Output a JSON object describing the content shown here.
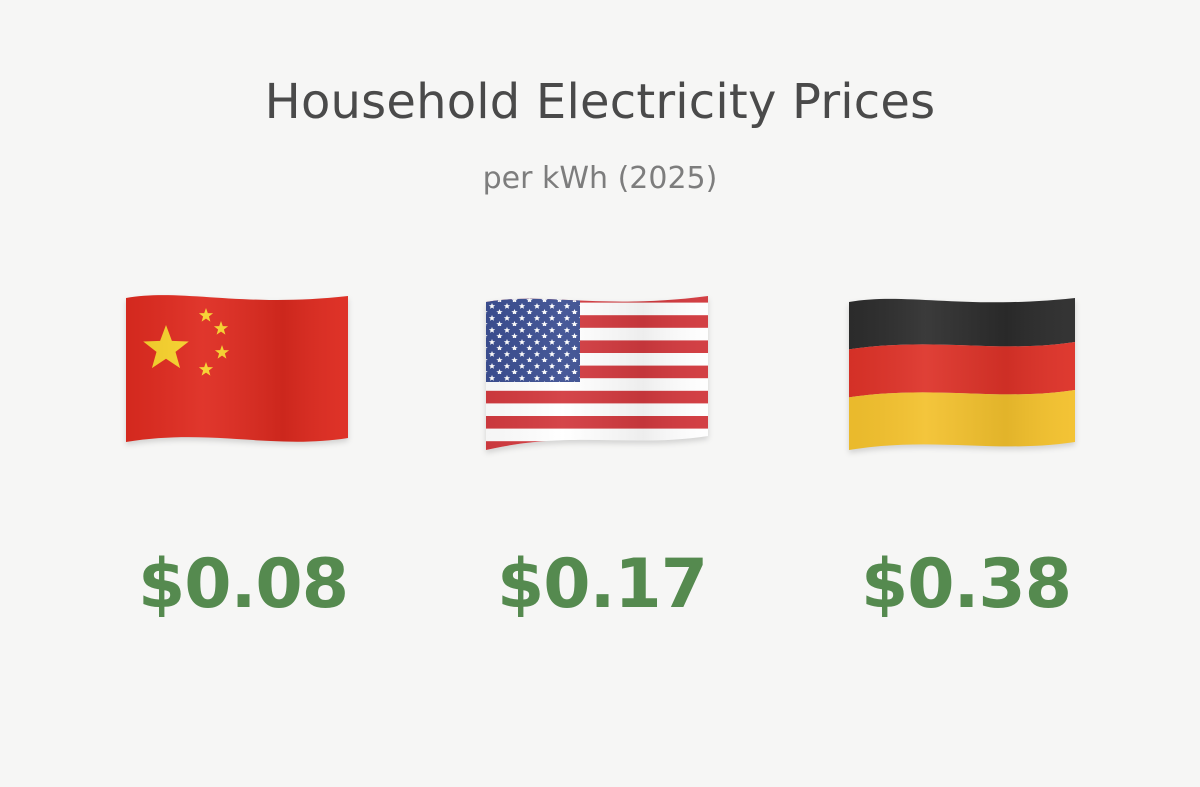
{
  "header": {
    "title": "Household Electricity Prices",
    "subtitle": "per kWh (2025)"
  },
  "colors": {
    "price_green": "#558a4f",
    "china_red": "#de2a1f",
    "china_yellow": "#f7d12b",
    "us_blue": "#3c4f92",
    "us_red": "#d23a3f",
    "germany_black": "#2c2c2c",
    "germany_red": "#dd3228",
    "germany_gold": "#f3c12d"
  },
  "countries": [
    {
      "flag_icon": "china-flag-icon",
      "price": "$0.08"
    },
    {
      "flag_icon": "usa-flag-icon",
      "price": "$0.17"
    },
    {
      "flag_icon": "germany-flag-icon",
      "price": "$0.38"
    }
  ]
}
